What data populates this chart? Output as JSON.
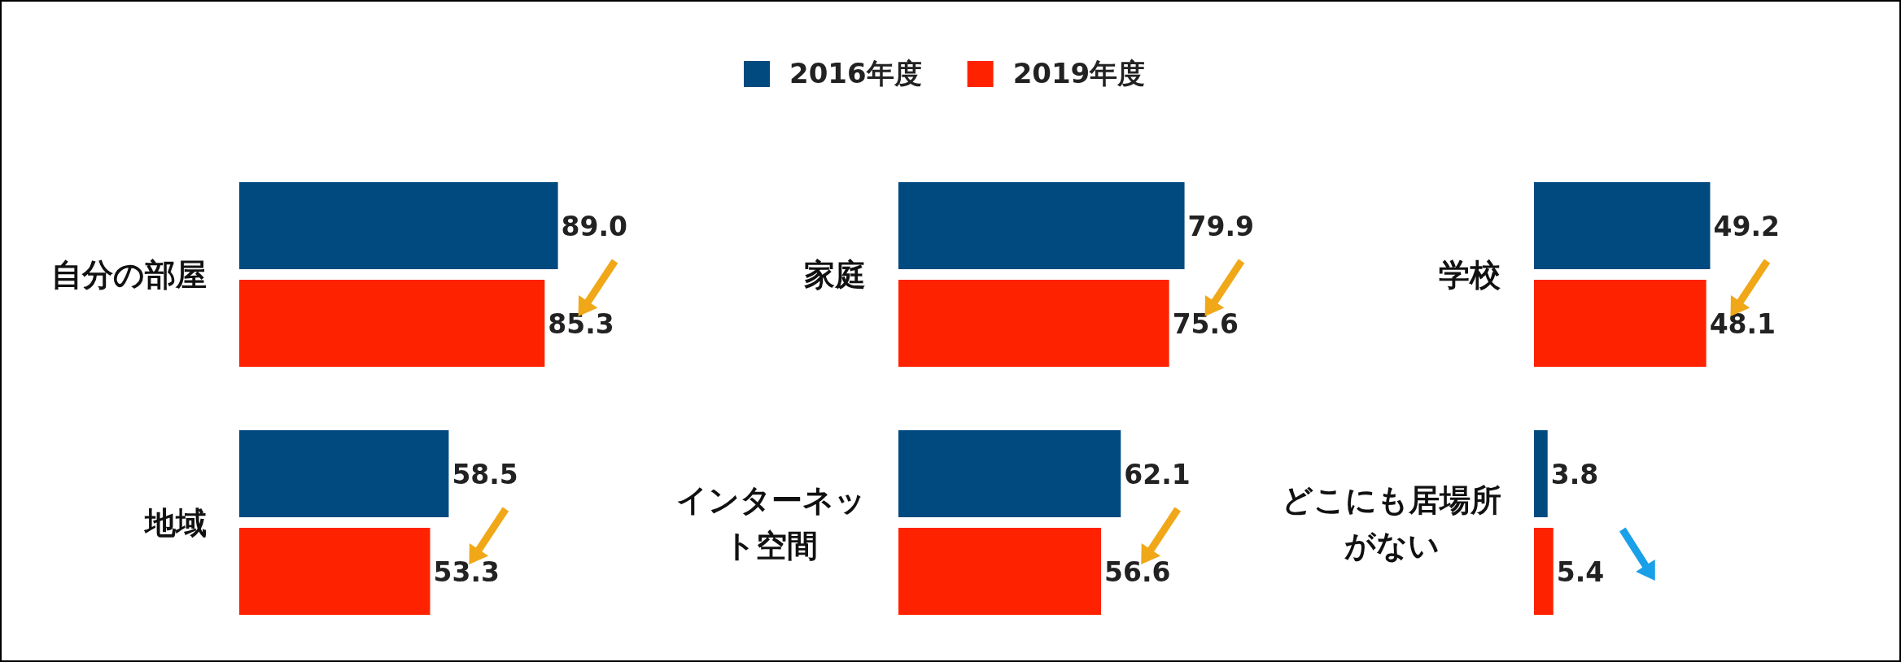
{
  "chart_data": [
    {
      "type": "bar",
      "orientation": "horizontal",
      "legend": "top",
      "categories": [
        "自分の部屋"
      ],
      "series": [
        {
          "name": "2016年度",
          "color": "#004a80",
          "values": [
            89.0
          ],
          "value_labels": [
            "89.0"
          ]
        },
        {
          "name": "2019年度",
          "color": "#ff2200",
          "values": [
            85.3
          ],
          "value_labels": [
            "85.3"
          ]
        }
      ]
    },
    {
      "type": "bar",
      "orientation": "horizontal",
      "categories": [
        "家庭"
      ],
      "series": [
        {
          "color": "#004a80",
          "values": [
            79.9
          ],
          "value_labels": [
            "79.9"
          ]
        },
        {
          "color": "#ff2200",
          "values": [
            75.6
          ],
          "value_labels": [
            "75.6"
          ]
        }
      ]
    },
    {
      "type": "bar",
      "orientation": "horizontal",
      "categories": [
        "学校"
      ],
      "series": [
        {
          "color": "#004a80",
          "values": [
            49.2
          ],
          "value_labels": [
            "49.2"
          ]
        },
        {
          "color": "#ff2200",
          "values": [
            48.1
          ],
          "value_labels": [
            "48.1"
          ]
        }
      ]
    },
    {
      "type": "bar",
      "orientation": "horizontal",
      "categories": [
        "地域"
      ],
      "series": [
        {
          "color": "#004a80",
          "values": [
            58.5
          ],
          "value_labels": [
            "58.5"
          ]
        },
        {
          "color": "#ff2200",
          "values": [
            53.3
          ],
          "value_labels": [
            "53.3"
          ]
        }
      ]
    },
    {
      "type": "bar",
      "orientation": "horizontal",
      "categories": [
        "インターネット空間"
      ],
      "series": [
        {
          "color": "#004a80",
          "values": [
            62.1
          ],
          "value_labels": [
            "62.1"
          ]
        },
        {
          "color": "#ff2200",
          "values": [
            56.6
          ],
          "value_labels": [
            "56.6"
          ]
        }
      ]
    },
    {
      "type": "bar",
      "orientation": "horizontal",
      "categories": [
        "どこにも居場所がない"
      ],
      "series": [
        {
          "color": "#004a80",
          "values": [
            3.8
          ],
          "value_labels": [
            "3.8"
          ]
        },
        {
          "color": "#ff2200",
          "values": [
            5.4
          ],
          "value_labels": [
            "5.4"
          ]
        }
      ]
    }
  ]
}
